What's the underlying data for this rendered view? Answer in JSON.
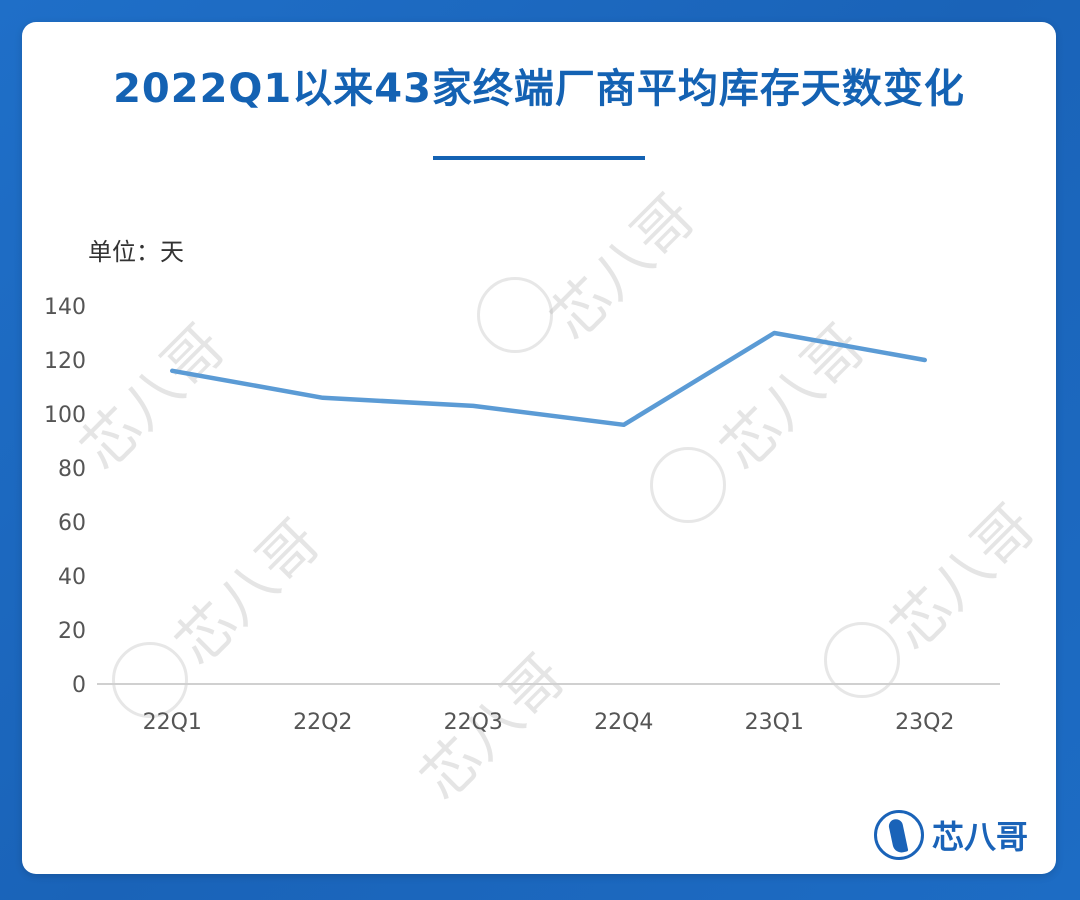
{
  "title": "2022Q1以来43家终端厂商平均库存天数变化",
  "unit_label": "单位：天",
  "watermark_text": "芯八哥",
  "logo_text": "芯八哥",
  "colors": {
    "background": "#1a63b8",
    "title": "#1462b3",
    "line": "#5b9bd5",
    "axis_text": "#555555"
  },
  "chart_data": {
    "type": "line",
    "categories": [
      "22Q1",
      "22Q2",
      "22Q3",
      "22Q4",
      "23Q1",
      "23Q2"
    ],
    "series": [
      {
        "values": [
          116,
          106,
          103,
          96,
          130,
          120
        ]
      }
    ],
    "ylim": [
      0,
      140
    ],
    "yticks": [
      0,
      20,
      40,
      60,
      80,
      100,
      120,
      140
    ],
    "ylabel": "单位：天",
    "grid": false,
    "legend": "none"
  }
}
